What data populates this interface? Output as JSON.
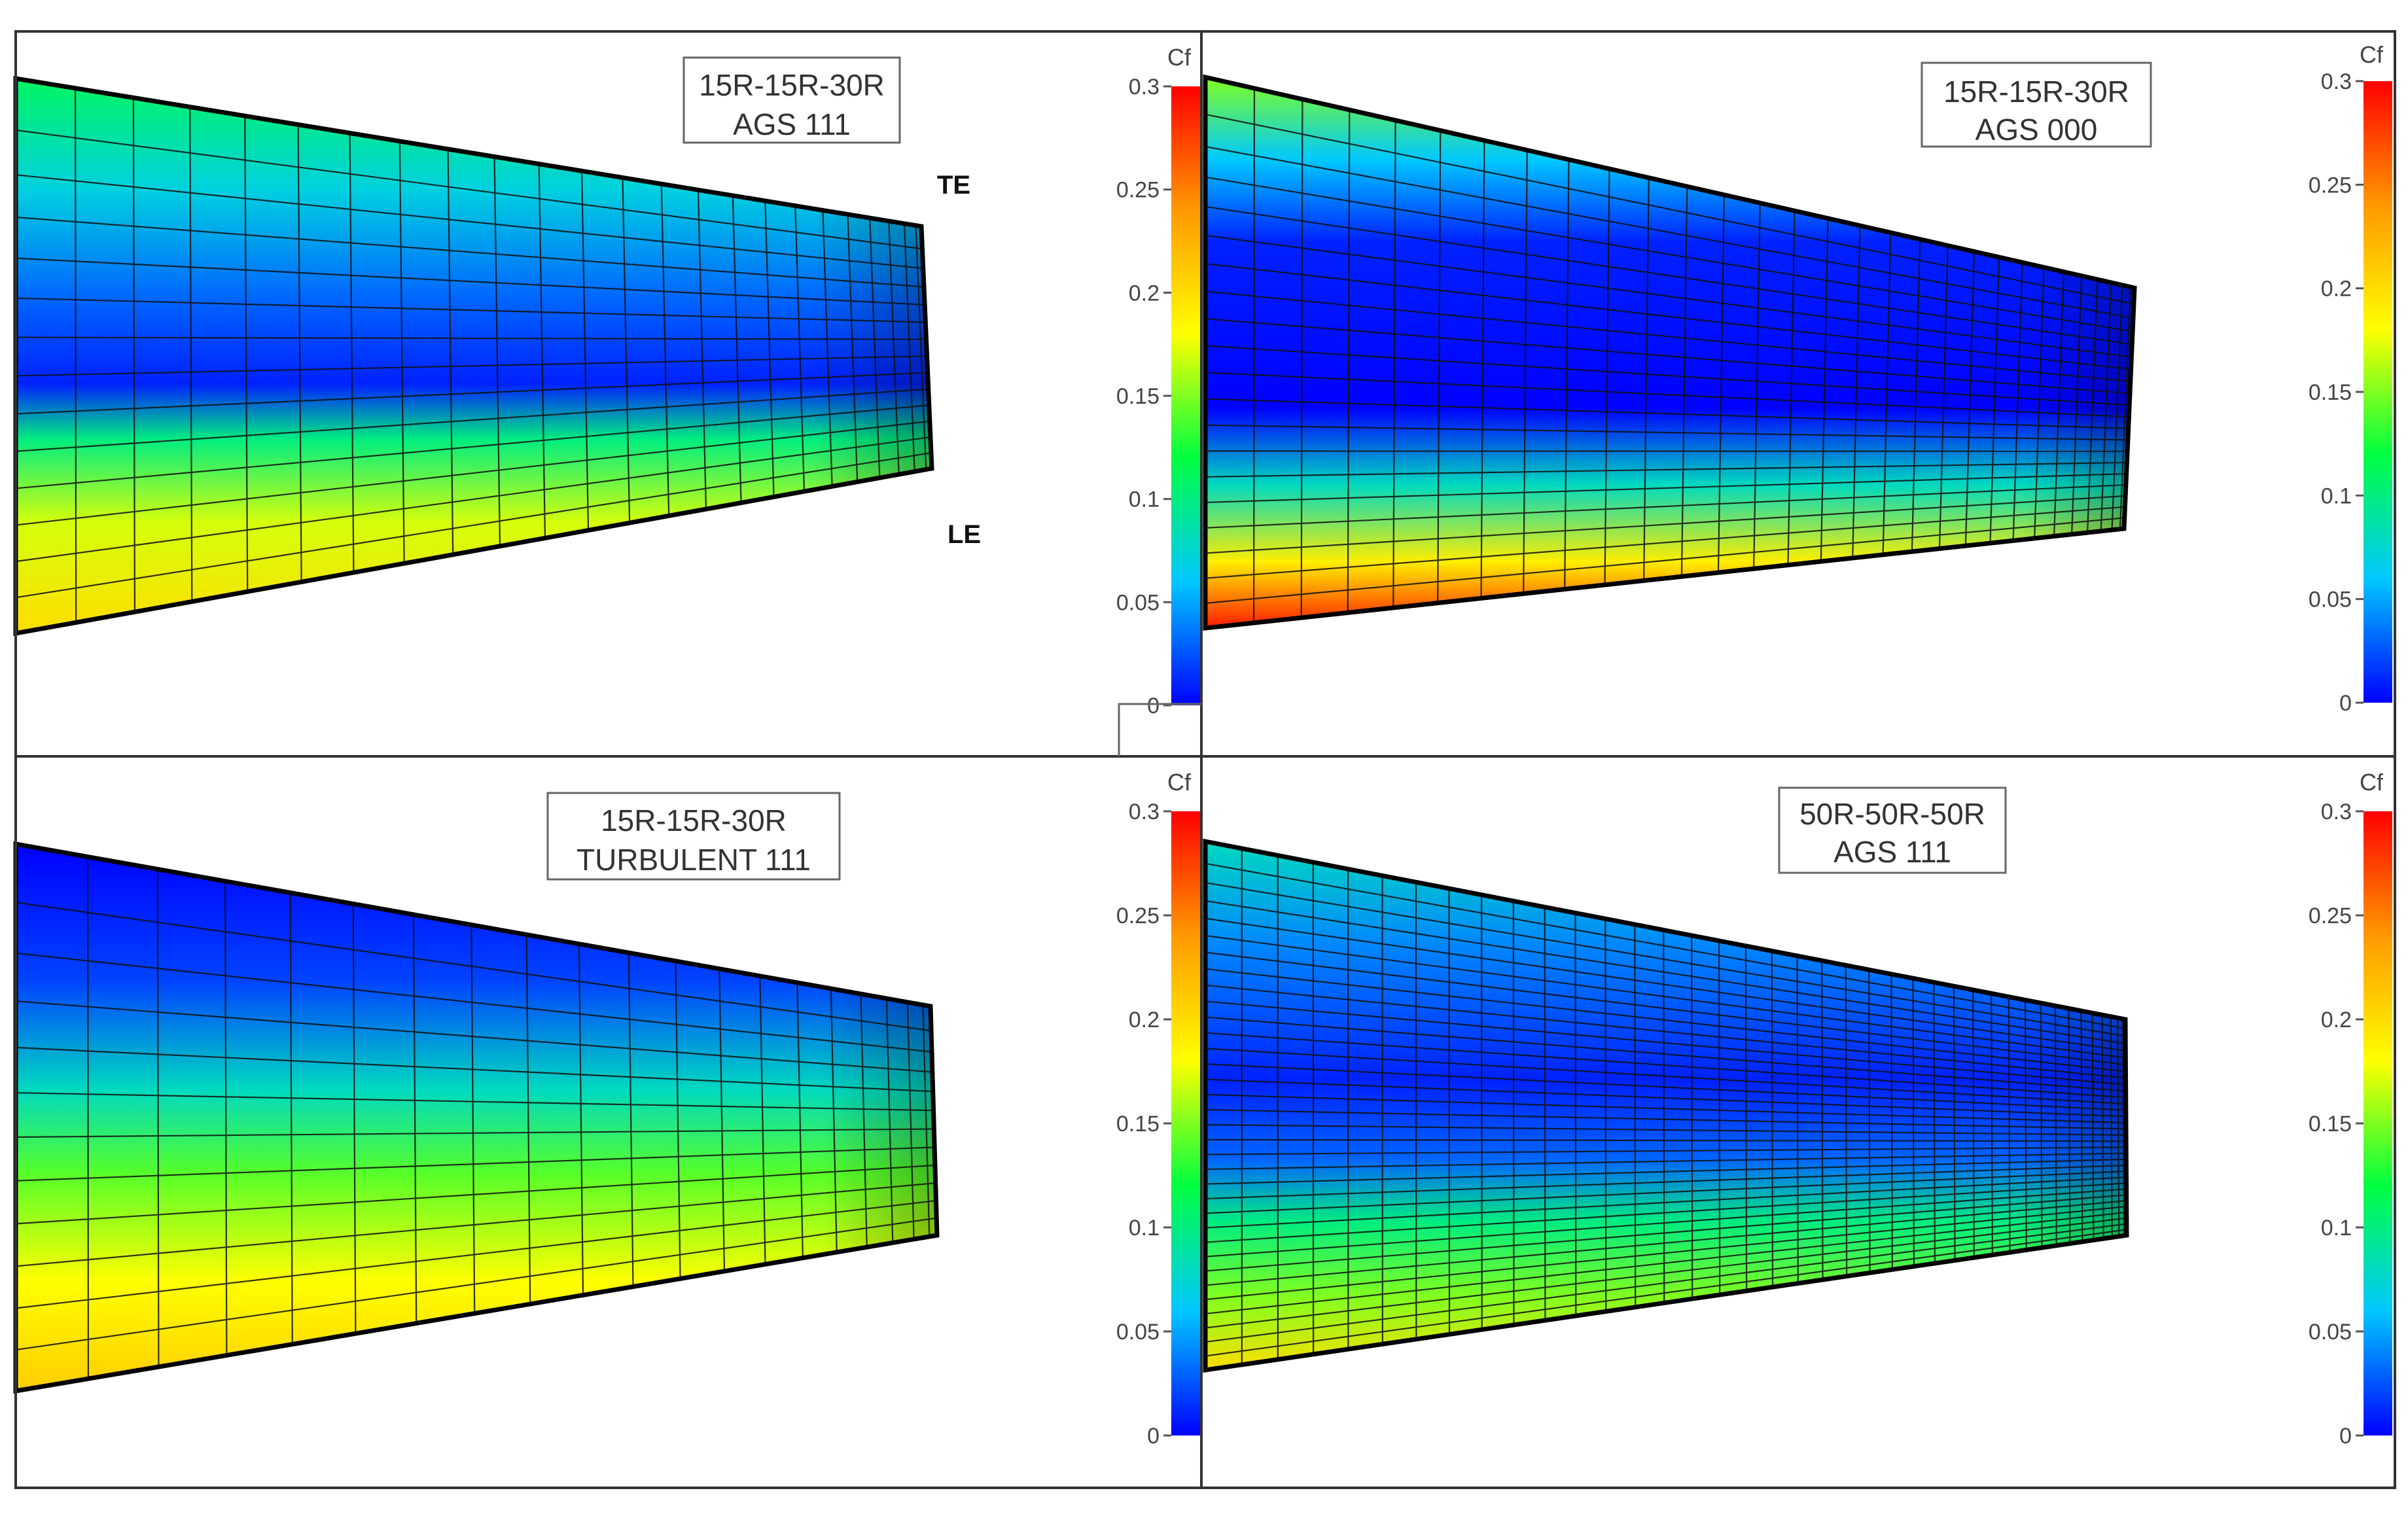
{
  "colors": {
    "colormap": [
      "#0000ff",
      "#00c8ff",
      "#00ff40",
      "#ffff00",
      "#ff9900",
      "#ff0000"
    ],
    "frame": "#333333",
    "mesh": "#111111"
  },
  "chart_data": [
    {
      "type": "heatmap",
      "panel": "top-left",
      "label": [
        "15R-15R-30R",
        "AGS 111"
      ],
      "edge_labels": {
        "te": "TE",
        "le": "LE"
      },
      "colorbar": {
        "title": "Cf",
        "range": [
          0,
          0.3
        ],
        "ticks": [
          "0",
          "0.05",
          "0.1",
          "0.15",
          "0.2",
          "0.25",
          "0.3"
        ]
      },
      "mesh": {
        "spanwise_lines": 14,
        "chordwise_lines": 24
      },
      "cf_bands": [
        {
          "pos": 0.0,
          "cf": 0.11
        },
        {
          "pos": 0.2,
          "cf": 0.07
        },
        {
          "pos": 0.4,
          "cf": 0.03
        },
        {
          "pos": 0.55,
          "cf": 0.01
        },
        {
          "pos": 0.65,
          "cf": 0.1
        },
        {
          "pos": 0.8,
          "cf": 0.17
        },
        {
          "pos": 1.0,
          "cf": 0.2
        }
      ]
    },
    {
      "type": "heatmap",
      "panel": "top-right",
      "label": [
        "15R-15R-30R",
        "AGS 000"
      ],
      "colorbar": {
        "title": "Cf",
        "range": [
          0,
          0.3
        ],
        "ticks": [
          "0",
          "0.05",
          "0.1",
          "0.15",
          "0.2",
          "0.25",
          "0.3"
        ]
      },
      "mesh": {
        "spanwise_lines": 20,
        "chordwise_lines": 30
      },
      "cf_bands": [
        {
          "pos": 0.0,
          "cf": 0.15
        },
        {
          "pos": 0.15,
          "cf": 0.06
        },
        {
          "pos": 0.3,
          "cf": 0.01
        },
        {
          "pos": 0.6,
          "cf": 0.0
        },
        {
          "pos": 0.74,
          "cf": 0.08
        },
        {
          "pos": 0.88,
          "cf": 0.19
        },
        {
          "pos": 1.0,
          "cf": 0.29
        }
      ]
    },
    {
      "type": "heatmap",
      "panel": "bottom-left",
      "label": [
        "15R-15R-30R",
        "TURBULENT 111"
      ],
      "colorbar": {
        "title": "Cf",
        "range": [
          0,
          0.3
        ],
        "ticks": [
          "0",
          "0.05",
          "0.1",
          "0.15",
          "0.2",
          "0.25",
          "0.3"
        ]
      },
      "mesh": {
        "spanwise_lines": 12,
        "chordwise_lines": 20
      },
      "cf_bands": [
        {
          "pos": 0.0,
          "cf": 0.0
        },
        {
          "pos": 0.25,
          "cf": 0.02
        },
        {
          "pos": 0.45,
          "cf": 0.08
        },
        {
          "pos": 0.6,
          "cf": 0.14
        },
        {
          "pos": 0.8,
          "cf": 0.18
        },
        {
          "pos": 1.0,
          "cf": 0.21
        }
      ]
    },
    {
      "type": "heatmap",
      "panel": "bottom-right",
      "label": [
        "50R-50R-50R",
        "AGS 111"
      ],
      "colorbar": {
        "title": "Cf",
        "range": [
          0,
          0.3
        ],
        "ticks": [
          "0",
          "0.05",
          "0.1",
          "0.15",
          "0.2",
          "0.25",
          "0.3"
        ]
      },
      "mesh": {
        "spanwise_lines": 34,
        "chordwise_lines": 40
      },
      "cf_bands": [
        {
          "pos": 0.0,
          "cf": 0.08
        },
        {
          "pos": 0.2,
          "cf": 0.04
        },
        {
          "pos": 0.45,
          "cf": 0.01
        },
        {
          "pos": 0.6,
          "cf": 0.03
        },
        {
          "pos": 0.72,
          "cf": 0.1
        },
        {
          "pos": 0.86,
          "cf": 0.15
        },
        {
          "pos": 1.0,
          "cf": 0.2
        }
      ]
    }
  ]
}
